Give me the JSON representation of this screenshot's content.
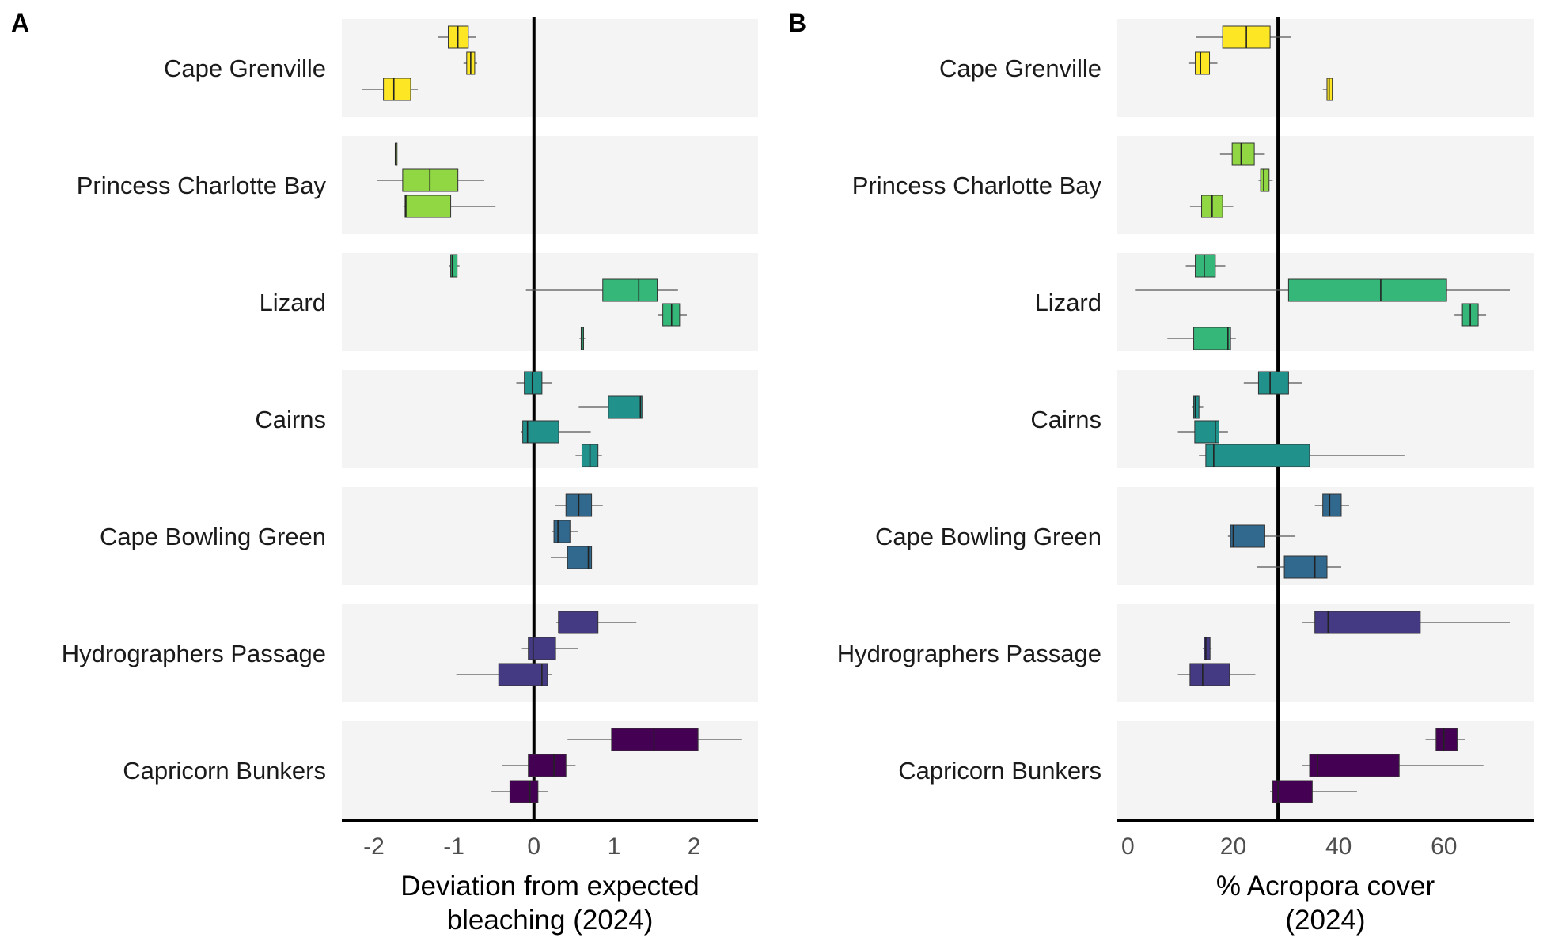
{
  "chart_data": [
    {
      "panel": "A",
      "type": "boxplot",
      "orientation": "horizontal",
      "xlabel": [
        "Deviation from expected",
        "bleaching (2024)"
      ],
      "xlim": [
        -2.4,
        2.8
      ],
      "xticks": [
        -2,
        -1,
        0,
        1,
        2
      ],
      "reference_line": 0,
      "grid": false,
      "regions": [
        {
          "name": "Cape Grenville",
          "color": "#fde725",
          "boxes": [
            {
              "min": -1.2,
              "q1": -1.07,
              "median": -0.95,
              "q3": -0.82,
              "max": -0.72
            },
            {
              "min": -0.88,
              "q1": -0.84,
              "median": -0.79,
              "q3": -0.74,
              "max": -0.71
            },
            {
              "min": -2.15,
              "q1": -1.88,
              "median": -1.75,
              "q3": -1.54,
              "max": -1.45
            }
          ]
        },
        {
          "name": "Princess Charlotte Bay",
          "color": "#90d743",
          "boxes": [
            {
              "min": -1.73,
              "q1": -1.73,
              "median": -1.73,
              "q3": -1.73,
              "max": -1.73
            },
            {
              "min": -1.96,
              "q1": -1.64,
              "median": -1.3,
              "q3": -0.95,
              "max": -0.62
            },
            {
              "min": -1.63,
              "q1": -1.61,
              "median": -1.6,
              "q3": -1.04,
              "max": -0.48
            }
          ]
        },
        {
          "name": "Lizard",
          "color": "#35b779",
          "boxes": [
            {
              "min": -1.06,
              "q1": -1.04,
              "median": -1.02,
              "q3": -0.96,
              "max": -0.93
            },
            {
              "min": -0.1,
              "q1": 0.86,
              "median": 1.31,
              "q3": 1.54,
              "max": 1.8
            },
            {
              "min": 1.55,
              "q1": 1.61,
              "median": 1.72,
              "q3": 1.82,
              "max": 1.91
            },
            {
              "min": 0.57,
              "q1": 0.59,
              "median": 0.6,
              "q3": 0.62,
              "max": 0.64
            }
          ]
        },
        {
          "name": "Cairns",
          "color": "#21918c",
          "boxes": [
            {
              "min": -0.22,
              "q1": -0.12,
              "median": -0.02,
              "q3": 0.1,
              "max": 0.22
            },
            {
              "min": 0.56,
              "q1": 0.93,
              "median": 1.33,
              "q3": 1.35,
              "max": 1.35
            },
            {
              "min": -0.16,
              "q1": -0.14,
              "median": -0.08,
              "q3": 0.31,
              "max": 0.71
            },
            {
              "min": 0.52,
              "q1": 0.6,
              "median": 0.7,
              "q3": 0.8,
              "max": 0.85
            }
          ]
        },
        {
          "name": "Cape Bowling Green",
          "color": "#31688e",
          "boxes": [
            {
              "min": 0.26,
              "q1": 0.4,
              "median": 0.56,
              "q3": 0.72,
              "max": 0.86
            },
            {
              "min": 0.23,
              "q1": 0.25,
              "median": 0.3,
              "q3": 0.45,
              "max": 0.55
            },
            {
              "min": 0.21,
              "q1": 0.42,
              "median": 0.68,
              "q3": 0.72,
              "max": 0.72
            }
          ]
        },
        {
          "name": "Hydrographers Passage",
          "color": "#443983",
          "boxes": [
            {
              "min": 0.28,
              "q1": 0.31,
              "median": 0.31,
              "q3": 0.8,
              "max": 1.28
            },
            {
              "min": -0.15,
              "q1": -0.07,
              "median": -0.01,
              "q3": 0.27,
              "max": 0.55
            },
            {
              "min": -0.97,
              "q1": -0.44,
              "median": 0.1,
              "q3": 0.17,
              "max": 0.22
            }
          ]
        },
        {
          "name": "Capricorn Bunkers",
          "color": "#440154",
          "boxes": [
            {
              "min": 0.42,
              "q1": 0.97,
              "median": 1.5,
              "q3": 2.05,
              "max": 2.6
            },
            {
              "min": -0.4,
              "q1": -0.07,
              "median": 0.25,
              "q3": 0.4,
              "max": 0.52
            },
            {
              "min": -0.53,
              "q1": -0.3,
              "median": -0.05,
              "q3": 0.05,
              "max": 0.18
            }
          ]
        }
      ]
    },
    {
      "panel": "B",
      "type": "boxplot",
      "orientation": "horizontal",
      "xlabel": [
        "% Acropora cover",
        "(2024)"
      ],
      "xlim": [
        -2,
        77
      ],
      "xticks": [
        0,
        20,
        40,
        60
      ],
      "reference_line": 28.5,
      "grid": false,
      "regions": [
        {
          "name": "Cape Grenville",
          "color": "#fde725",
          "boxes": [
            {
              "min": 13,
              "q1": 18,
              "median": 22.5,
              "q3": 27,
              "max": 31
            },
            {
              "min": 11.5,
              "q1": 12.8,
              "median": 13.8,
              "q3": 15.5,
              "max": 17
            },
            {
              "min": 37,
              "q1": 37.8,
              "median": 38.2,
              "q3": 38.8,
              "max": 39
            }
          ]
        },
        {
          "name": "Princess Charlotte Bay",
          "color": "#90d743",
          "boxes": [
            {
              "min": 17.5,
              "q1": 19.8,
              "median": 21.5,
              "q3": 24,
              "max": 26
            },
            {
              "min": 24.8,
              "q1": 25.2,
              "median": 25.8,
              "q3": 26.8,
              "max": 27.5
            },
            {
              "min": 11.8,
              "q1": 14,
              "median": 16,
              "q3": 18,
              "max": 20
            }
          ]
        },
        {
          "name": "Lizard",
          "color": "#35b779",
          "boxes": [
            {
              "min": 11,
              "q1": 12.8,
              "median": 14.5,
              "q3": 16.6,
              "max": 18.5
            },
            {
              "min": 1.5,
              "q1": 30.5,
              "median": 48,
              "q3": 60.5,
              "max": 72.5
            },
            {
              "min": 62,
              "q1": 63.5,
              "median": 65,
              "q3": 66.5,
              "max": 68
            },
            {
              "min": 7.5,
              "q1": 12.5,
              "median": 19,
              "q3": 19.5,
              "max": 20.5
            }
          ]
        },
        {
          "name": "Cairns",
          "color": "#21918c",
          "boxes": [
            {
              "min": 22,
              "q1": 24.8,
              "median": 27,
              "q3": 30.5,
              "max": 33
            },
            {
              "min": 12.3,
              "q1": 12.5,
              "median": 12.8,
              "q3": 13.5,
              "max": 14.3
            },
            {
              "min": 9.5,
              "q1": 12.7,
              "median": 16.6,
              "q3": 17.3,
              "max": 19
            },
            {
              "min": 13.5,
              "q1": 14.8,
              "median": 16.3,
              "q3": 34.5,
              "max": 52.5
            }
          ]
        },
        {
          "name": "Cape Bowling Green",
          "color": "#31688e",
          "boxes": [
            {
              "min": 35.5,
              "q1": 37,
              "median": 38.3,
              "q3": 40.5,
              "max": 42
            }
          ]
        },
        {
          "name": "Cape Bowling Green",
          "color": "#31688e",
          "boxes": [
            {
              "min": 19,
              "q1": 19.5,
              "median": 20,
              "q3": 26,
              "max": 31.8
            },
            {
              "min": 24.5,
              "q1": 29.7,
              "median": 35.5,
              "q3": 37.8,
              "max": 40.5
            }
          ]
        },
        {
          "name": "Hydrographers Passage",
          "color": "#443983",
          "boxes": [
            {
              "min": 33,
              "q1": 35.5,
              "median": 38,
              "q3": 55.5,
              "max": 72.5
            },
            {
              "min": 14.2,
              "q1": 14.5,
              "median": 14.8,
              "q3": 15.6,
              "max": 15.9
            },
            {
              "min": 9.5,
              "q1": 11.8,
              "median": 14.2,
              "q3": 19.3,
              "max": 24.2
            }
          ]
        },
        {
          "name": "Capricorn Bunkers",
          "color": "#440154",
          "boxes": [
            {
              "min": 56.5,
              "q1": 58.5,
              "median": 60,
              "q3": 62.5,
              "max": 64
            },
            {
              "min": 33,
              "q1": 34.5,
              "median": 36,
              "q3": 51.5,
              "max": 67.5
            },
            {
              "min": 27,
              "q1": 27.5,
              "median": 28.5,
              "q3": 35,
              "max": 43.5
            }
          ]
        }
      ]
    }
  ]
}
